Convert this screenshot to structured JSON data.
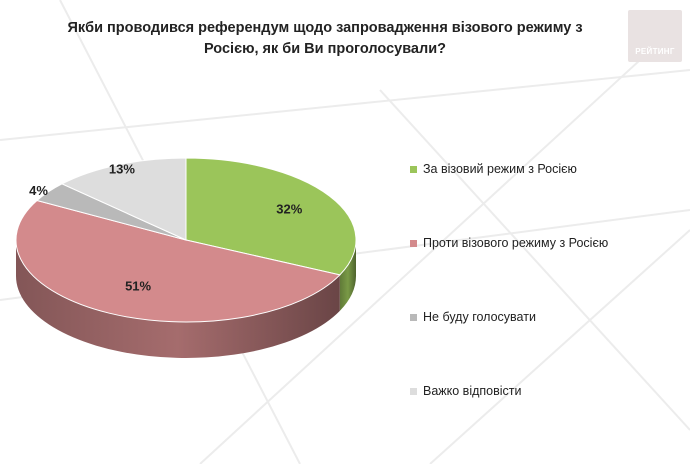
{
  "title": "Якби проводився референдум щодо запровадження візового режиму з Росією, як би Ви проголосували?",
  "logo": {
    "text": "РЕЙТИНГ",
    "icon": "rating-logo"
  },
  "chart_data": {
    "type": "pie",
    "title": "Якби проводився референдум щодо запровадження візового режиму з Росією, як би Ви проголосували?",
    "style": "3d",
    "legend_position": "right",
    "slices": [
      {
        "label": "За візовий режим з Росією",
        "value": 32,
        "display": "32%",
        "color": "#9bc55a"
      },
      {
        "label": "Проти візового режиму з Росією",
        "value": 51,
        "display": "51%",
        "color": "#d38a8c"
      },
      {
        "label": "Не буду голосувати",
        "value": 4,
        "display": "4%",
        "color": "#b9b9b9"
      },
      {
        "label": "Важко відповісти",
        "value": 13,
        "display": "13%",
        "color": "#dddddd"
      }
    ]
  }
}
